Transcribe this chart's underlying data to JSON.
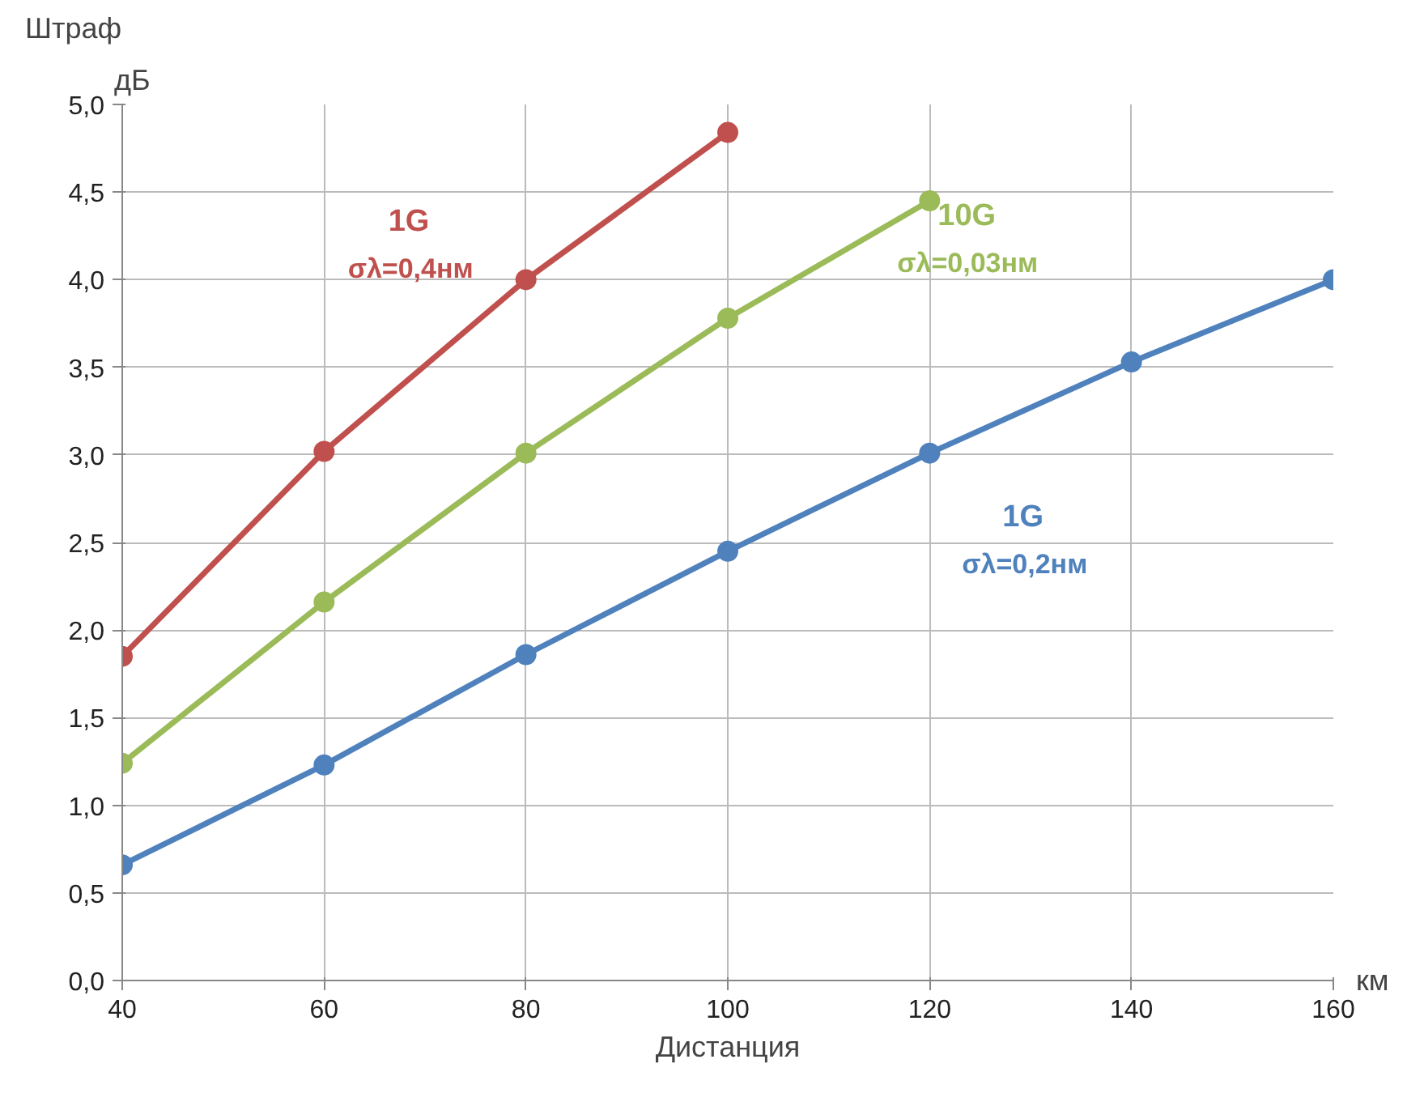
{
  "chart_data": {
    "type": "line",
    "ylabel": "Штраф",
    "xlabel": "Дистанция",
    "annotations": [
      "дБ",
      "км"
    ],
    "x": [
      40,
      60,
      80,
      100,
      120,
      140,
      160
    ],
    "series": [
      {
        "name": "1G σλ=0,4нм",
        "color": "#c0504d",
        "values": [
          1.85,
          3.02,
          4.0,
          4.84,
          null,
          null,
          null
        ]
      },
      {
        "name": "10G σλ=0,03нм",
        "color": "#9bbb59",
        "values": [
          1.24,
          2.16,
          3.01,
          3.78,
          4.45,
          null,
          null
        ]
      },
      {
        "name": "1G σλ=0,2нм",
        "color": "#4f81bd",
        "values": [
          0.66,
          1.23,
          1.86,
          2.45,
          3.01,
          3.53,
          4.0
        ]
      }
    ],
    "xlim": [
      40,
      160
    ],
    "xticks": [
      40,
      60,
      80,
      100,
      120,
      140,
      160
    ],
    "ylim": [
      0,
      5
    ],
    "yticks": [
      {
        "value": 0,
        "label": "0,0"
      },
      {
        "value": 0.5,
        "label": "0,5"
      },
      {
        "value": 1,
        "label": "1,0"
      },
      {
        "value": 1.5,
        "label": "1,5"
      },
      {
        "value": 2,
        "label": "2,0"
      },
      {
        "value": 2.5,
        "label": "2,5"
      },
      {
        "value": 3,
        "label": "3,0"
      },
      {
        "value": 3.5,
        "label": "3,5"
      },
      {
        "value": 4,
        "label": "4,0"
      },
      {
        "value": 4.5,
        "label": "4,5"
      },
      {
        "value": 5,
        "label": "5,0"
      }
    ],
    "grid": true,
    "marker": "circle",
    "line_style": "solid"
  }
}
